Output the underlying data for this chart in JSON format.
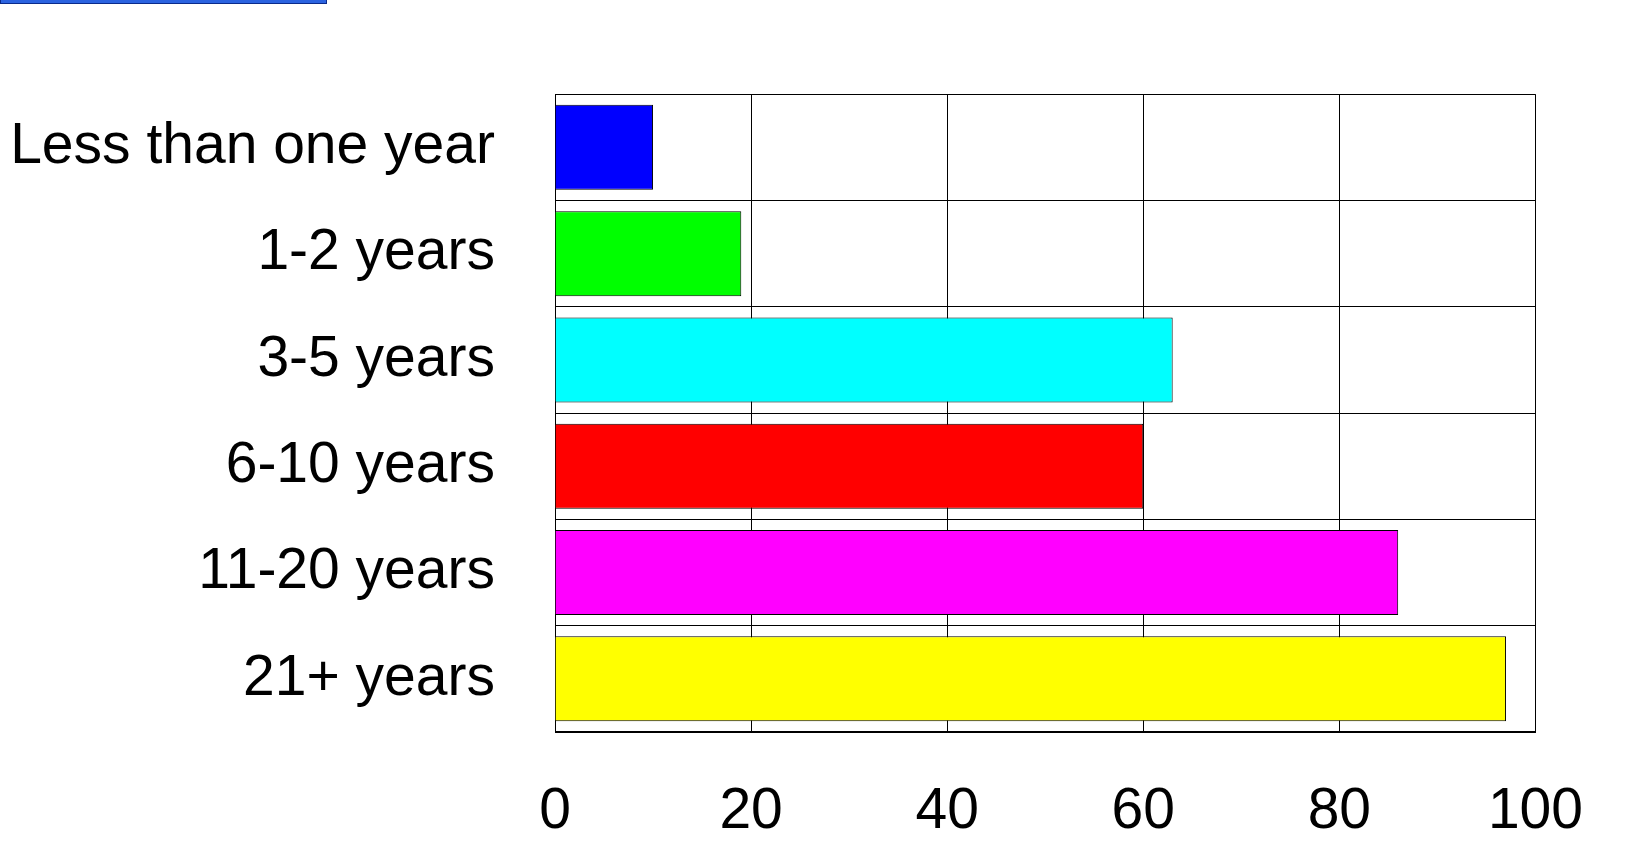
{
  "chart_data": {
    "type": "bar",
    "orientation": "horizontal",
    "categories": [
      "Less than one year",
      "1-2 years",
      "3-5 years",
      "6-10 years",
      "11-20 years",
      "21+ years"
    ],
    "values": [
      10,
      19,
      63,
      60,
      86,
      97
    ],
    "colors": [
      "#0000ff",
      "#00ff00",
      "#00ffff",
      "#ff0000",
      "#ff00ff",
      "#ffff00"
    ],
    "xlim": [
      0,
      100
    ],
    "xticks": [
      0,
      20,
      40,
      60,
      80,
      100
    ],
    "grid": true
  }
}
